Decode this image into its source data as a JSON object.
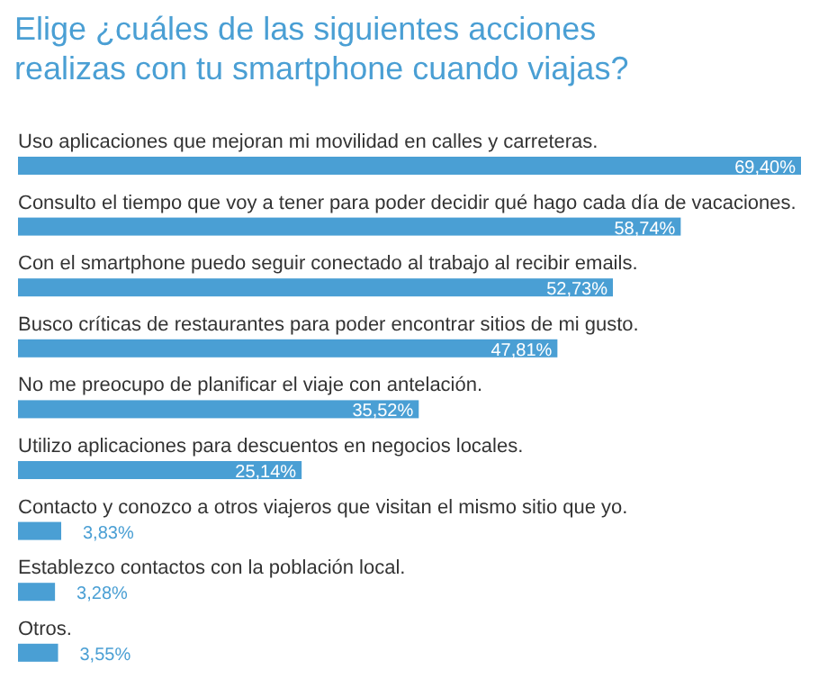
{
  "chart_data": {
    "type": "bar",
    "orientation": "horizontal",
    "title": "Elige ¿cuáles de las siguientes acciones realizas con tu smartphone cuando viajas?",
    "categories": [
      "Uso aplicaciones que mejoran mi movilidad en calles y carreteras.",
      "Consulto el tiempo que voy a tener para poder decidir qué hago cada día de vacaciones.",
      "Con el smartphone puedo seguir conectado al trabajo al recibir emails.",
      "Busco críticas de restaurantes para poder encontrar sitios de mi gusto.",
      "No me preocupo de planificar el viaje con antelación.",
      "Utilizo aplicaciones para descuentos en negocios locales.",
      "Contacto y conozco a otros viajeros que visitan el mismo sitio que yo.",
      "Establezco contactos con la población local.",
      "Otros."
    ],
    "values": [
      69.4,
      58.74,
      52.73,
      47.81,
      35.52,
      25.14,
      3.83,
      3.28,
      3.55
    ],
    "value_labels": [
      "69,40%",
      "58,74%",
      "52,73%",
      "47,81%",
      "35,52%",
      "25,14%",
      "3,83%",
      "3,28%",
      "3,55%"
    ],
    "color": "#4a9fd4"
  }
}
